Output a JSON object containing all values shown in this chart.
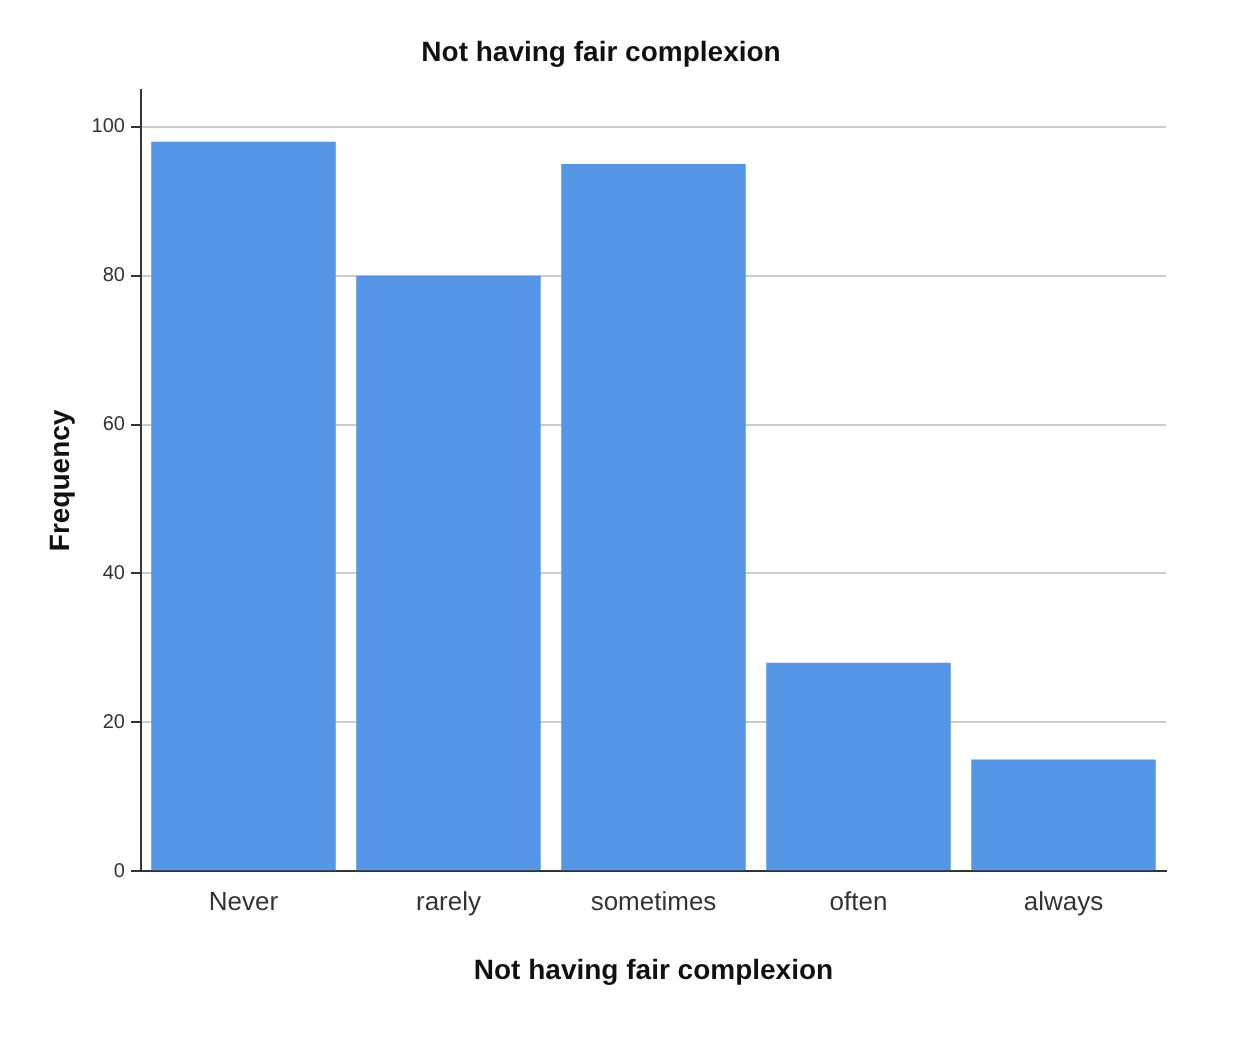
{
  "chart_data": {
    "type": "bar",
    "title": "Not having fair complexion",
    "xlabel": "Not having fair complexion",
    "ylabel": "Frequency",
    "categories": [
      "Never",
      "rarely",
      "sometimes",
      "often",
      "always"
    ],
    "values": [
      98,
      80,
      95,
      28,
      15
    ],
    "color": "#5597e6",
    "ylim": [
      0,
      105
    ],
    "yticks": [
      0,
      20,
      40,
      60,
      80,
      100
    ],
    "grid": "y",
    "legend": false
  }
}
